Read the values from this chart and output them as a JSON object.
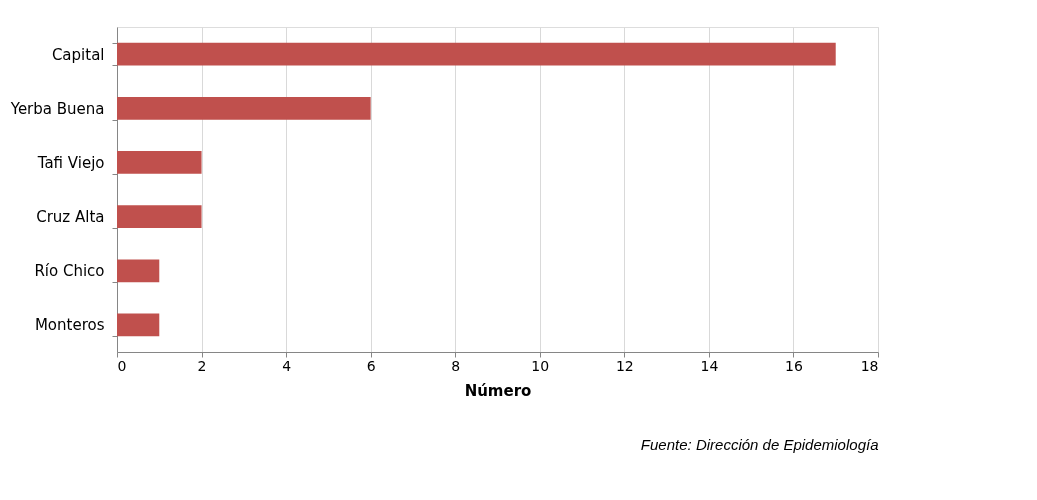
{
  "chart_data": {
    "type": "bar",
    "orientation": "horizontal",
    "xlabel": "Número",
    "categories": [
      "Capital",
      "Yerba Buena",
      "Tafi Viejo",
      "Cruz Alta",
      "Río Chico",
      "Monteros"
    ],
    "values": [
      17,
      6,
      2,
      2,
      1,
      1
    ],
    "color": "#c0504d",
    "xlim": [
      0,
      18
    ],
    "xticks": [
      0,
      2,
      4,
      6,
      8,
      10,
      12,
      14,
      16,
      18
    ],
    "grid": "x",
    "annotations": [
      "Fuente: Dirección de Epidemiología"
    ]
  }
}
